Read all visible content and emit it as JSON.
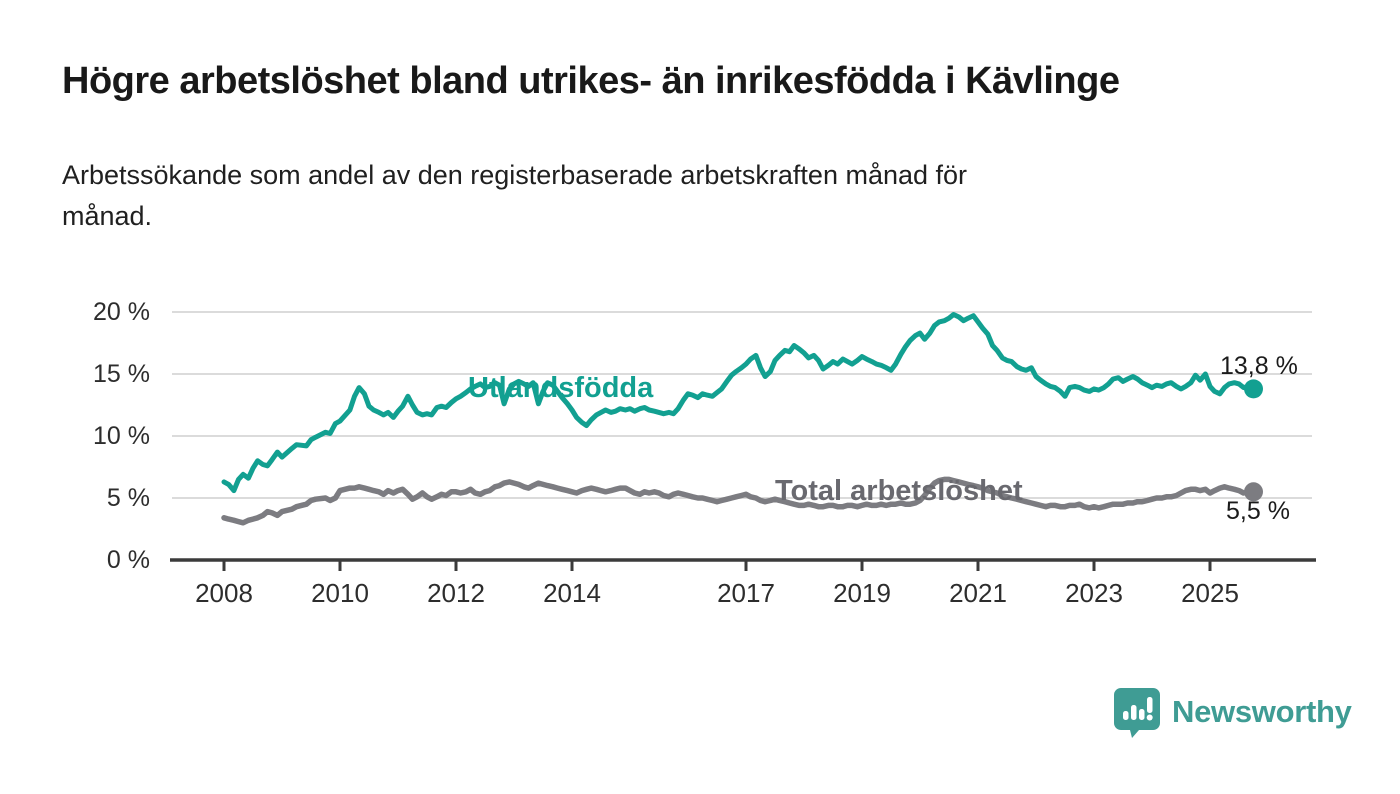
{
  "title": "Högre arbetslöshet bland utrikes- än inrikesfödda i Kävlinge",
  "subtitle": "Arbetssökande som andel av den registerbaserade arbetskraften månad för månad.",
  "subtitle_lines": {
    "line1": "Arbetssökande som andel av den registerbaserade arbetskraften månad för",
    "line2": "månad."
  },
  "colors": {
    "accent_teal": "#12A091",
    "line_gray": "#7C7C81",
    "label_gray": "#69696F",
    "axis": "#3B3B3B",
    "gridline": "#DBDBDB",
    "logo_teal": "#3F9C94",
    "text_dark": "#1A1A1A"
  },
  "logo": {
    "text": "Newsworthy",
    "icon": "speech-bubble-bar-chart-icon"
  },
  "chart_data": {
    "type": "line",
    "title": "Högre arbetslöshet bland utrikes- än inrikesfödda i Kävlinge",
    "xlabel": "",
    "ylabel": "",
    "ylim": [
      0,
      20
    ],
    "xlim": [
      2007.1,
      2026.8
    ],
    "grid": "horizontal-only",
    "legend_position": "inline-labels-on-lines",
    "y_ticks": [
      {
        "label": "20 %",
        "value": 20
      },
      {
        "label": "15 %",
        "value": 15
      },
      {
        "label": "10 %",
        "value": 10
      },
      {
        "label": "5 %",
        "value": 5
      },
      {
        "label": "0 %",
        "value": 0
      }
    ],
    "x_ticks": [
      {
        "label": "2008",
        "year": 2008
      },
      {
        "label": "2010",
        "year": 2010
      },
      {
        "label": "2012",
        "year": 2012
      },
      {
        "label": "2014",
        "year": 2014
      },
      {
        "label": "2017",
        "year": 2017
      },
      {
        "label": "2019",
        "year": 2019
      },
      {
        "label": "2021",
        "year": 2021
      },
      {
        "label": "2023",
        "year": 2023
      },
      {
        "label": "2025",
        "year": 2025
      }
    ],
    "series": [
      {
        "name": "Utlandsfödda",
        "color": "#12A091",
        "end_label": "13,8 %",
        "end_value": 13.8
      },
      {
        "name": "Total arbetslöshet",
        "color": "#7C7C81",
        "end_label": "5,5 %",
        "end_value": 5.5
      }
    ],
    "points_format": [
      "year_decimal",
      "utlandsfodda_pct",
      "total_pct"
    ],
    "points": [
      [
        2008.0,
        6.3,
        3.4
      ],
      [
        2008.08,
        6.1,
        3.3
      ],
      [
        2008.17,
        5.6,
        3.2
      ],
      [
        2008.25,
        6.5,
        3.1
      ],
      [
        2008.33,
        6.9,
        3.0
      ],
      [
        2008.42,
        6.6,
        3.2
      ],
      [
        2008.5,
        7.4,
        3.3
      ],
      [
        2008.58,
        8.0,
        3.4
      ],
      [
        2008.67,
        7.7,
        3.6
      ],
      [
        2008.75,
        7.6,
        3.9
      ],
      [
        2008.83,
        8.1,
        3.8
      ],
      [
        2008.92,
        8.7,
        3.6
      ],
      [
        2009.0,
        8.3,
        3.9
      ],
      [
        2009.17,
        9.0,
        4.1
      ],
      [
        2009.25,
        9.3,
        4.3
      ],
      [
        2009.42,
        9.2,
        4.5
      ],
      [
        2009.5,
        9.7,
        4.8
      ],
      [
        2009.58,
        9.9,
        4.9
      ],
      [
        2009.75,
        10.3,
        5.0
      ],
      [
        2009.83,
        10.2,
        4.8
      ],
      [
        2009.92,
        11.0,
        5.0
      ],
      [
        2010.0,
        11.2,
        5.6
      ],
      [
        2010.17,
        12.1,
        5.8
      ],
      [
        2010.25,
        13.2,
        5.8
      ],
      [
        2010.33,
        13.9,
        5.9
      ],
      [
        2010.42,
        13.4,
        5.8
      ],
      [
        2010.5,
        12.4,
        5.7
      ],
      [
        2010.58,
        12.1,
        5.6
      ],
      [
        2010.67,
        11.9,
        5.5
      ],
      [
        2010.75,
        11.7,
        5.3
      ],
      [
        2010.83,
        11.9,
        5.6
      ],
      [
        2010.92,
        11.5,
        5.4
      ],
      [
        2011.0,
        12.0,
        5.6
      ],
      [
        2011.08,
        12.4,
        5.7
      ],
      [
        2011.17,
        13.2,
        5.3
      ],
      [
        2011.25,
        12.5,
        4.9
      ],
      [
        2011.33,
        11.9,
        5.1
      ],
      [
        2011.42,
        11.7,
        5.4
      ],
      [
        2011.5,
        11.8,
        5.1
      ],
      [
        2011.58,
        11.7,
        4.9
      ],
      [
        2011.67,
        12.3,
        5.1
      ],
      [
        2011.75,
        12.4,
        5.3
      ],
      [
        2011.83,
        12.3,
        5.2
      ],
      [
        2011.92,
        12.7,
        5.5
      ],
      [
        2012.0,
        13.0,
        5.5
      ],
      [
        2012.08,
        13.2,
        5.4
      ],
      [
        2012.17,
        13.5,
        5.5
      ],
      [
        2012.25,
        13.8,
        5.7
      ],
      [
        2012.33,
        14.0,
        5.4
      ],
      [
        2012.42,
        14.2,
        5.3
      ],
      [
        2012.5,
        13.9,
        5.5
      ],
      [
        2012.58,
        14.0,
        5.6
      ],
      [
        2012.67,
        14.3,
        5.9
      ],
      [
        2012.75,
        14.1,
        6.0
      ],
      [
        2012.83,
        12.6,
        6.2
      ],
      [
        2012.92,
        13.8,
        6.3
      ],
      [
        2013.0,
        14.2,
        6.2
      ],
      [
        2013.08,
        14.4,
        6.1
      ],
      [
        2013.17,
        14.2,
        5.9
      ],
      [
        2013.25,
        14.0,
        5.8
      ],
      [
        2013.33,
        14.3,
        6.0
      ],
      [
        2013.42,
        12.6,
        6.2
      ],
      [
        2013.5,
        13.6,
        6.1
      ],
      [
        2013.58,
        14.3,
        6.0
      ],
      [
        2013.67,
        14.1,
        5.9
      ],
      [
        2013.75,
        13.6,
        5.8
      ],
      [
        2013.83,
        13.1,
        5.7
      ],
      [
        2013.92,
        12.6,
        5.6
      ],
      [
        2014.0,
        12.1,
        5.5
      ],
      [
        2014.08,
        11.5,
        5.4
      ],
      [
        2014.17,
        11.1,
        5.6
      ],
      [
        2014.25,
        10.85,
        5.7
      ],
      [
        2014.33,
        11.3,
        5.8
      ],
      [
        2014.42,
        11.7,
        5.7
      ],
      [
        2014.5,
        11.9,
        5.6
      ],
      [
        2014.58,
        12.1,
        5.5
      ],
      [
        2014.67,
        11.9,
        5.6
      ],
      [
        2014.75,
        12.0,
        5.7
      ],
      [
        2014.83,
        12.2,
        5.8
      ],
      [
        2014.92,
        12.1,
        5.8
      ],
      [
        2015.0,
        12.2,
        5.6
      ],
      [
        2015.08,
        12.0,
        5.4
      ],
      [
        2015.17,
        12.2,
        5.3
      ],
      [
        2015.25,
        12.3,
        5.5
      ],
      [
        2015.33,
        12.1,
        5.4
      ],
      [
        2015.42,
        12.0,
        5.5
      ],
      [
        2015.5,
        11.9,
        5.4
      ],
      [
        2015.58,
        11.8,
        5.2
      ],
      [
        2015.67,
        11.9,
        5.1
      ],
      [
        2015.75,
        11.8,
        5.3
      ],
      [
        2015.83,
        12.2,
        5.4
      ],
      [
        2015.92,
        12.9,
        5.3
      ],
      [
        2016.0,
        13.4,
        5.2
      ],
      [
        2016.08,
        13.3,
        5.1
      ],
      [
        2016.17,
        13.1,
        5.0
      ],
      [
        2016.25,
        13.4,
        5.0
      ],
      [
        2016.33,
        13.3,
        4.9
      ],
      [
        2016.42,
        13.2,
        4.8
      ],
      [
        2016.5,
        13.5,
        4.7
      ],
      [
        2016.58,
        13.8,
        4.8
      ],
      [
        2016.67,
        14.4,
        4.9
      ],
      [
        2016.75,
        14.9,
        5.0
      ],
      [
        2016.83,
        15.2,
        5.1
      ],
      [
        2016.92,
        15.5,
        5.2
      ],
      [
        2017.0,
        15.8,
        5.3
      ],
      [
        2017.08,
        16.2,
        5.1
      ],
      [
        2017.17,
        16.5,
        5.0
      ],
      [
        2017.25,
        15.5,
        4.8
      ],
      [
        2017.33,
        14.8,
        4.7
      ],
      [
        2017.42,
        15.2,
        4.8
      ],
      [
        2017.5,
        16.1,
        4.9
      ],
      [
        2017.58,
        16.5,
        4.8
      ],
      [
        2017.67,
        16.9,
        4.7
      ],
      [
        2017.75,
        16.8,
        4.6
      ],
      [
        2017.83,
        17.3,
        4.5
      ],
      [
        2017.92,
        17.0,
        4.4
      ],
      [
        2018.0,
        16.7,
        4.4
      ],
      [
        2018.08,
        16.3,
        4.5
      ],
      [
        2018.17,
        16.5,
        4.4
      ],
      [
        2018.25,
        16.1,
        4.3
      ],
      [
        2018.33,
        15.4,
        4.3
      ],
      [
        2018.42,
        15.7,
        4.4
      ],
      [
        2018.5,
        16.0,
        4.4
      ],
      [
        2018.58,
        15.8,
        4.3
      ],
      [
        2018.67,
        16.2,
        4.3
      ],
      [
        2018.75,
        16.0,
        4.4
      ],
      [
        2018.83,
        15.8,
        4.4
      ],
      [
        2018.92,
        16.1,
        4.3
      ],
      [
        2019.0,
        16.4,
        4.4
      ],
      [
        2019.08,
        16.2,
        4.5
      ],
      [
        2019.17,
        16.0,
        4.4
      ],
      [
        2019.25,
        15.8,
        4.4
      ],
      [
        2019.33,
        15.7,
        4.5
      ],
      [
        2019.42,
        15.5,
        4.4
      ],
      [
        2019.5,
        15.3,
        4.5
      ],
      [
        2019.58,
        15.8,
        4.5
      ],
      [
        2019.67,
        16.6,
        4.6
      ],
      [
        2019.75,
        17.2,
        4.5
      ],
      [
        2019.83,
        17.7,
        4.5
      ],
      [
        2019.92,
        18.1,
        4.6
      ],
      [
        2020.0,
        18.3,
        4.8
      ],
      [
        2020.08,
        17.8,
        5.2
      ],
      [
        2020.17,
        18.3,
        5.8
      ],
      [
        2020.25,
        18.9,
        6.2
      ],
      [
        2020.33,
        19.2,
        6.4
      ],
      [
        2020.42,
        19.3,
        6.5
      ],
      [
        2020.5,
        19.5,
        6.5
      ],
      [
        2020.58,
        19.8,
        6.4
      ],
      [
        2020.67,
        19.6,
        6.3
      ],
      [
        2020.75,
        19.3,
        6.2
      ],
      [
        2020.83,
        19.5,
        6.1
      ],
      [
        2020.92,
        19.7,
        6.0
      ],
      [
        2021.0,
        19.2,
        5.9
      ],
      [
        2021.08,
        18.7,
        5.8
      ],
      [
        2021.17,
        18.2,
        5.6
      ],
      [
        2021.25,
        17.3,
        5.5
      ],
      [
        2021.33,
        16.9,
        5.4
      ],
      [
        2021.42,
        16.3,
        5.2
      ],
      [
        2021.5,
        16.1,
        5.1
      ],
      [
        2021.58,
        16.0,
        5.0
      ],
      [
        2021.67,
        15.6,
        4.9
      ],
      [
        2021.75,
        15.4,
        4.8
      ],
      [
        2021.83,
        15.3,
        4.7
      ],
      [
        2021.92,
        15.5,
        4.6
      ],
      [
        2022.0,
        14.8,
        4.5
      ],
      [
        2022.08,
        14.5,
        4.4
      ],
      [
        2022.17,
        14.2,
        4.3
      ],
      [
        2022.25,
        14.0,
        4.4
      ],
      [
        2022.33,
        13.9,
        4.4
      ],
      [
        2022.42,
        13.6,
        4.3
      ],
      [
        2022.5,
        13.2,
        4.3
      ],
      [
        2022.58,
        13.9,
        4.4
      ],
      [
        2022.67,
        14.0,
        4.4
      ],
      [
        2022.75,
        13.9,
        4.5
      ],
      [
        2022.83,
        13.7,
        4.3
      ],
      [
        2022.92,
        13.6,
        4.2
      ],
      [
        2023.0,
        13.8,
        4.3
      ],
      [
        2023.08,
        13.7,
        4.2
      ],
      [
        2023.17,
        13.9,
        4.3
      ],
      [
        2023.25,
        14.2,
        4.4
      ],
      [
        2023.33,
        14.6,
        4.5
      ],
      [
        2023.42,
        14.7,
        4.5
      ],
      [
        2023.5,
        14.4,
        4.5
      ],
      [
        2023.58,
        14.6,
        4.6
      ],
      [
        2023.67,
        14.8,
        4.6
      ],
      [
        2023.75,
        14.6,
        4.7
      ],
      [
        2023.83,
        14.3,
        4.7
      ],
      [
        2023.92,
        14.1,
        4.8
      ],
      [
        2024.0,
        13.9,
        4.9
      ],
      [
        2024.08,
        14.1,
        5.0
      ],
      [
        2024.17,
        14.0,
        5.0
      ],
      [
        2024.25,
        14.2,
        5.1
      ],
      [
        2024.33,
        14.3,
        5.1
      ],
      [
        2024.42,
        14.0,
        5.2
      ],
      [
        2024.5,
        13.8,
        5.4
      ],
      [
        2024.58,
        14.0,
        5.6
      ],
      [
        2024.67,
        14.3,
        5.7
      ],
      [
        2024.75,
        14.9,
        5.7
      ],
      [
        2024.83,
        14.5,
        5.6
      ],
      [
        2024.92,
        15.0,
        5.7
      ],
      [
        2025.0,
        14.0,
        5.4
      ],
      [
        2025.08,
        13.6,
        5.6
      ],
      [
        2025.17,
        13.4,
        5.8
      ],
      [
        2025.25,
        13.9,
        5.9
      ],
      [
        2025.33,
        14.2,
        5.8
      ],
      [
        2025.42,
        14.3,
        5.7
      ],
      [
        2025.5,
        14.2,
        5.6
      ],
      [
        2025.58,
        13.9,
        5.4
      ],
      [
        2025.67,
        14.0,
        5.5
      ],
      [
        2025.75,
        13.8,
        5.5
      ]
    ]
  }
}
